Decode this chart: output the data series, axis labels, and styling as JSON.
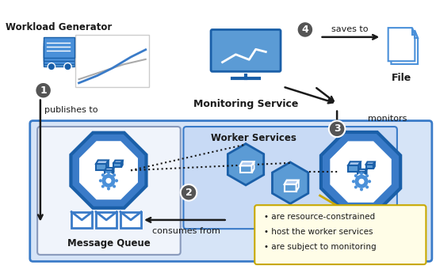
{
  "fig_width": 5.5,
  "fig_height": 3.5,
  "dpi": 100,
  "bg_color": "#ffffff",
  "light_blue_bg": "#d6e4f7",
  "medium_blue": "#3a7bc8",
  "dark_blue": "#1a5fa8",
  "icon_blue": "#4a90d9",
  "light_gray_bg": "#e8e8e8",
  "circle_gray": "#555555",
  "arrow_color": "#1a1a1a",
  "yellow_bg": "#fffacd",
  "yellow_border": "#c8a800",
  "title_color": "#1a1a1a",
  "text_color": "#1a1a1a",
  "labels": {
    "workload": "Workload Generator",
    "monitoring": "Monitoring Service",
    "message_queue": "Message Queue",
    "worker_services": "Worker Services",
    "file": "File",
    "publishes_to": "publishes to",
    "consumes_from": "consumes from",
    "saves_to": "saves to",
    "monitors": "monitors",
    "num1": "1",
    "num2": "2",
    "num3": "3",
    "num4": "4",
    "bullet1": "are resource-constrained",
    "bullet2": "host the worker services",
    "bullet3": "are subject to monitoring"
  }
}
